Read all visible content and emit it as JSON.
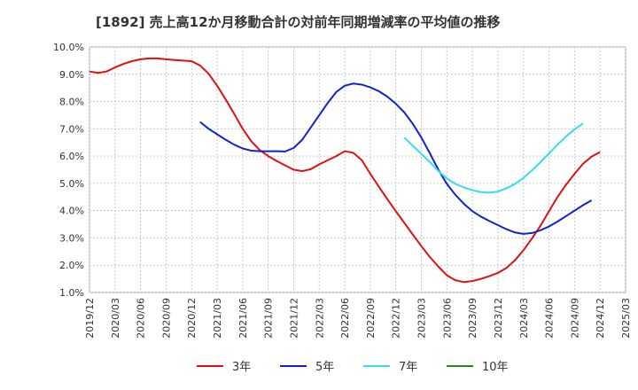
{
  "chart_data": {
    "type": "line",
    "title": "[1892]  売上高12か月移動合計の対前年同期増減率の平均値の推移",
    "xlabel": "",
    "ylabel": "",
    "ylim": [
      1.0,
      10.0
    ],
    "y_ticks": [
      "1.0%",
      "2.0%",
      "3.0%",
      "4.0%",
      "5.0%",
      "6.0%",
      "7.0%",
      "8.0%",
      "9.0%",
      "10.0%"
    ],
    "x_ticks": [
      "2019/12",
      "2020/03",
      "2020/06",
      "2020/09",
      "2020/12",
      "2021/03",
      "2021/06",
      "2021/09",
      "2021/12",
      "2022/03",
      "2022/06",
      "2022/09",
      "2022/12",
      "2023/03",
      "2023/06",
      "2023/09",
      "2023/12",
      "2024/03",
      "2024/06",
      "2024/09",
      "2024/12",
      "2025/03"
    ],
    "grid": true,
    "legend_position": "bottom",
    "colors": {
      "3y": "#dd1111",
      "5y": "#1122cc",
      "7y": "#33ddee",
      "10y": "#228822"
    },
    "series": [
      {
        "name": "3年",
        "key": "3y",
        "start": "2019/12",
        "values": [
          9.1,
          9.05,
          9.1,
          9.25,
          9.38,
          9.48,
          9.55,
          9.58,
          9.58,
          9.55,
          9.52,
          9.5,
          9.48,
          9.32,
          9.02,
          8.58,
          8.08,
          7.55,
          7.0,
          6.55,
          6.22,
          6.0,
          5.82,
          5.66,
          5.5,
          5.45,
          5.52,
          5.7,
          5.85,
          6.0,
          6.18,
          6.12,
          5.85,
          5.35,
          4.88,
          4.42,
          3.98,
          3.55,
          3.12,
          2.7,
          2.3,
          1.95,
          1.63,
          1.45,
          1.38,
          1.42,
          1.5,
          1.6,
          1.72,
          1.9,
          2.18,
          2.55,
          2.98,
          3.45,
          3.98,
          4.5,
          4.95,
          5.35,
          5.72,
          5.98,
          6.15
        ]
      },
      {
        "name": "5年",
        "key": "5y",
        "start": "2021/01",
        "values": [
          7.25,
          7.0,
          6.8,
          6.6,
          6.42,
          6.28,
          6.2,
          6.18,
          6.18,
          6.18,
          6.17,
          6.3,
          6.6,
          7.05,
          7.5,
          7.95,
          8.35,
          8.58,
          8.66,
          8.62,
          8.52,
          8.38,
          8.18,
          7.92,
          7.6,
          7.18,
          6.68,
          6.1,
          5.5,
          4.98,
          4.58,
          4.25,
          3.98,
          3.78,
          3.62,
          3.47,
          3.32,
          3.2,
          3.15,
          3.18,
          3.28,
          3.42,
          3.6,
          3.8,
          4.0,
          4.2,
          4.38
        ]
      },
      {
        "name": "7年",
        "key": "7y",
        "start": "2023/01",
        "values": [
          6.68,
          6.38,
          6.08,
          5.78,
          5.45,
          5.18,
          4.98,
          4.85,
          4.75,
          4.68,
          4.66,
          4.7,
          4.82,
          4.98,
          5.2,
          5.48,
          5.78,
          6.1,
          6.42,
          6.72,
          6.98,
          7.2
        ]
      },
      {
        "name": "10年",
        "key": "10y",
        "start": "2019/12",
        "values": []
      }
    ]
  }
}
